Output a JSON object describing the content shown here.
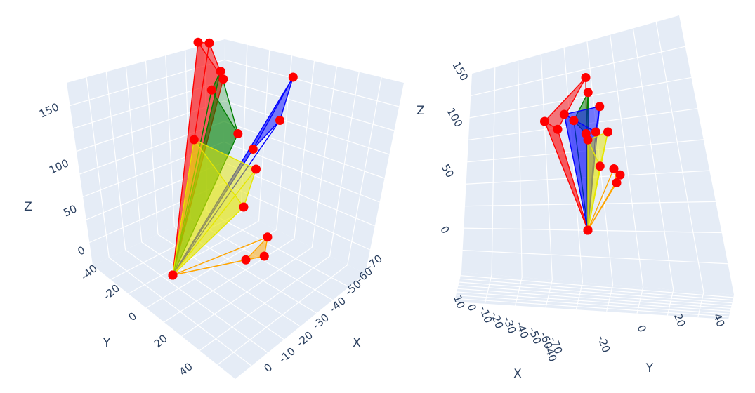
{
  "chart_data": [
    {
      "type": "scatter3d",
      "title": "",
      "axes": {
        "x": {
          "label": "X",
          "ticks": [
            "0",
            "-10",
            "-20",
            "-30",
            "-40",
            "-50",
            "-60",
            "-70"
          ]
        },
        "y": {
          "label": "Y",
          "ticks": [
            "-40",
            "-20",
            "0",
            "20",
            "40"
          ]
        },
        "z": {
          "label": "Z",
          "ticks": [
            "0",
            "50",
            "100",
            "150"
          ]
        }
      },
      "colors": {
        "red": "#ff0000",
        "green": "#008000",
        "blue": "#0000ff",
        "yellow": "#e6e600",
        "orange": "#ffa500",
        "marker": "#ff0000",
        "background": "#e5ecf6",
        "text": "#2a3f5f"
      },
      "series": [
        {
          "color": "red",
          "points": [
            [
              0,
              0,
              0
            ],
            [
              -5,
              -40,
              140
            ],
            [
              -25,
              -10,
              170
            ],
            [
              -20,
              -25,
              130
            ]
          ]
        },
        {
          "color": "green",
          "points": [
            [
              0,
              0,
              0
            ],
            [
              -30,
              -5,
              155
            ],
            [
              -20,
              -15,
              130
            ],
            [
              -35,
              0,
              115
            ]
          ]
        },
        {
          "color": "blue",
          "points": [
            [
              0,
              0,
              0
            ],
            [
              -55,
              -10,
              155
            ],
            [
              -60,
              15,
              145
            ],
            [
              -45,
              10,
              115
            ]
          ]
        },
        {
          "color": "yellow",
          "points": [
            [
              0,
              0,
              0
            ],
            [
              -15,
              -5,
              100
            ],
            [
              -50,
              20,
              110
            ],
            [
              -40,
              15,
              75
            ]
          ]
        },
        {
          "color": "orange",
          "points": [
            [
              0,
              0,
              0
            ],
            [
              -45,
              30,
              50
            ],
            [
              -55,
              30,
              70
            ],
            [
              -55,
              35,
              60
            ]
          ]
        }
      ]
    },
    {
      "type": "scatter3d",
      "title": "",
      "axes": {
        "x": {
          "label": "X",
          "ticks": [
            "10",
            "0",
            "-10",
            "-20",
            "-30",
            "-40",
            "-50",
            "-60",
            "-70"
          ]
        },
        "y": {
          "label": "Y",
          "ticks": [
            "-40",
            "-20",
            "0",
            "20",
            "40"
          ]
        },
        "z": {
          "label": "Z",
          "ticks": [
            "0",
            "50",
            "100",
            "150"
          ]
        }
      },
      "colors": {
        "red": "#ff0000",
        "green": "#008000",
        "blue": "#0000ff",
        "yellow": "#e6e600",
        "orange": "#ffa500",
        "marker": "#ff0000",
        "background": "#e5ecf6",
        "text": "#2a3f5f"
      },
      "series": [
        {
          "color": "red",
          "points": [
            [
              0,
              0,
              0
            ],
            [
              -5,
              -40,
              140
            ],
            [
              -25,
              -10,
              170
            ],
            [
              -20,
              -25,
              130
            ]
          ]
        },
        {
          "color": "green",
          "points": [
            [
              0,
              0,
              0
            ],
            [
              -30,
              -5,
              155
            ],
            [
              -20,
              -15,
              130
            ],
            [
              -35,
              0,
              115
            ]
          ]
        },
        {
          "color": "blue",
          "points": [
            [
              0,
              0,
              0
            ],
            [
              -55,
              -10,
              155
            ],
            [
              -60,
              15,
              145
            ],
            [
              -45,
              10,
              115
            ]
          ]
        },
        {
          "color": "yellow",
          "points": [
            [
              0,
              0,
              0
            ],
            [
              -15,
              -5,
              100
            ],
            [
              -50,
              20,
              110
            ],
            [
              -40,
              15,
              75
            ]
          ]
        },
        {
          "color": "orange",
          "points": [
            [
              0,
              0,
              0
            ],
            [
              -45,
              30,
              50
            ],
            [
              -55,
              30,
              70
            ],
            [
              -55,
              35,
              60
            ]
          ]
        }
      ]
    }
  ]
}
